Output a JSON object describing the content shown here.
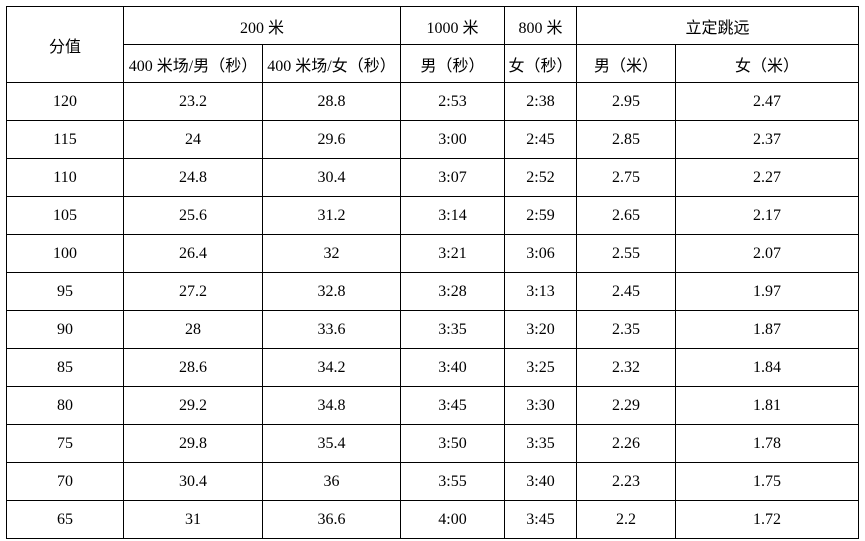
{
  "table": {
    "title_semantic": "sport-score-standards-table",
    "border_color": "#000000",
    "text_color": "#000000",
    "header": {
      "score_label": "分值",
      "groups": [
        {
          "label": "200 米",
          "colspan": 2
        },
        {
          "label": "1000 米",
          "colspan": 1
        },
        {
          "label": "800 米",
          "colspan": 1
        },
        {
          "label": "立定跳远",
          "colspan": 2
        }
      ],
      "subheaders": [
        "400 米场/男（秒）",
        "400 米场/女（秒）",
        "男（秒）",
        "女（秒）",
        "男（米）",
        "女（米）"
      ]
    },
    "rows": [
      {
        "score": "120",
        "values": [
          "23.2",
          "28.8",
          "2:53",
          "2:38",
          "2.95",
          "2.47"
        ]
      },
      {
        "score": "115",
        "values": [
          "24",
          "29.6",
          "3:00",
          "2:45",
          "2.85",
          "2.37"
        ]
      },
      {
        "score": "110",
        "values": [
          "24.8",
          "30.4",
          "3:07",
          "2:52",
          "2.75",
          "2.27"
        ]
      },
      {
        "score": "105",
        "values": [
          "25.6",
          "31.2",
          "3:14",
          "2:59",
          "2.65",
          "2.17"
        ]
      },
      {
        "score": "100",
        "values": [
          "26.4",
          "32",
          "3:21",
          "3:06",
          "2.55",
          "2.07"
        ]
      },
      {
        "score": "95",
        "values": [
          "27.2",
          "32.8",
          "3:28",
          "3:13",
          "2.45",
          "1.97"
        ]
      },
      {
        "score": "90",
        "values": [
          "28",
          "33.6",
          "3:35",
          "3:20",
          "2.35",
          "1.87"
        ]
      },
      {
        "score": "85",
        "values": [
          "28.6",
          "34.2",
          "3:40",
          "3:25",
          "2.32",
          "1.84"
        ]
      },
      {
        "score": "80",
        "values": [
          "29.2",
          "34.8",
          "3:45",
          "3:30",
          "2.29",
          "1.81"
        ]
      },
      {
        "score": "75",
        "values": [
          "29.8",
          "35.4",
          "3:50",
          "3:35",
          "2.26",
          "1.78"
        ]
      },
      {
        "score": "70",
        "values": [
          "30.4",
          "36",
          "3:55",
          "3:40",
          "2.23",
          "1.75"
        ]
      },
      {
        "score": "65",
        "values": [
          "31",
          "36.6",
          "4:00",
          "3:45",
          "2.2",
          "1.72"
        ]
      }
    ]
  }
}
